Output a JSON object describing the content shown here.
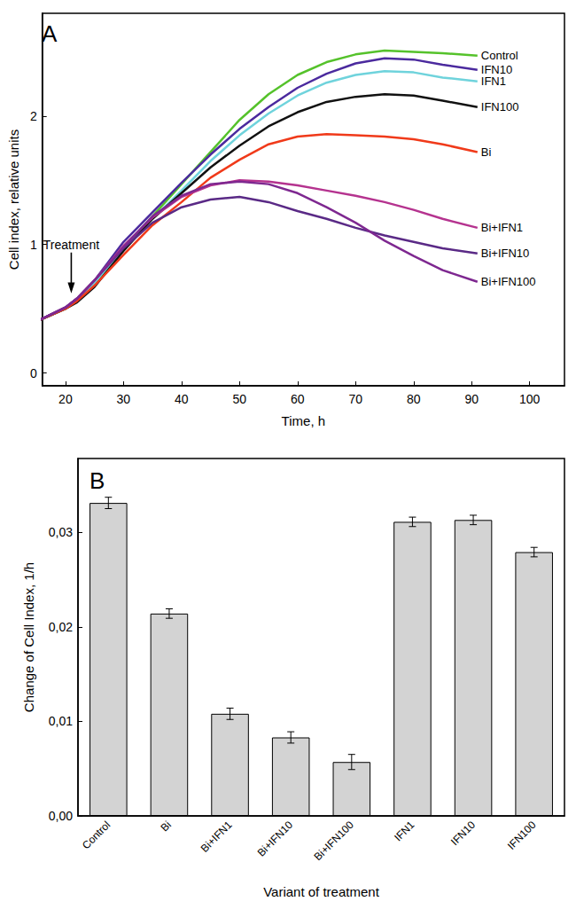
{
  "chart_data": [
    {
      "type": "line",
      "title": "A",
      "x_label": "Time, h",
      "y_label": "Cell index, relative units",
      "x": [
        15,
        20,
        22,
        25,
        30,
        35,
        40,
        45,
        50,
        55,
        60,
        65,
        70,
        75,
        80,
        85,
        91
      ],
      "series": [
        {
          "name": "Control",
          "color": "#55c22b",
          "values": [
            0.4,
            0.5,
            0.57,
            0.68,
            0.97,
            1.22,
            1.47,
            1.72,
            1.97,
            2.17,
            2.32,
            2.42,
            2.48,
            2.51,
            2.5,
            2.49,
            2.47
          ]
        },
        {
          "name": "IFN10",
          "color": "#4b2a9e",
          "values": [
            0.4,
            0.51,
            0.58,
            0.72,
            1.02,
            1.25,
            1.48,
            1.7,
            1.9,
            2.07,
            2.22,
            2.33,
            2.41,
            2.45,
            2.44,
            2.4,
            2.36
          ]
        },
        {
          "name": "IFN1",
          "color": "#6fd3dc",
          "values": [
            0.4,
            0.5,
            0.57,
            0.7,
            0.97,
            1.2,
            1.42,
            1.65,
            1.85,
            2.02,
            2.16,
            2.26,
            2.32,
            2.35,
            2.34,
            2.3,
            2.27
          ]
        },
        {
          "name": "IFN100",
          "color": "#111111",
          "values": [
            0.4,
            0.5,
            0.55,
            0.67,
            0.95,
            1.2,
            1.4,
            1.6,
            1.77,
            1.92,
            2.03,
            2.11,
            2.15,
            2.17,
            2.16,
            2.12,
            2.07
          ]
        },
        {
          "name": "Bi",
          "color": "#f03a1a",
          "values": [
            0.4,
            0.5,
            0.56,
            0.68,
            0.92,
            1.15,
            1.33,
            1.52,
            1.66,
            1.78,
            1.84,
            1.86,
            1.85,
            1.84,
            1.82,
            1.78,
            1.72
          ]
        },
        {
          "name": "Bi+IFN1",
          "color": "#b5338f",
          "values": [
            0.4,
            0.51,
            0.58,
            0.72,
            0.99,
            1.21,
            1.37,
            1.46,
            1.5,
            1.49,
            1.46,
            1.42,
            1.38,
            1.33,
            1.27,
            1.2,
            1.13
          ]
        },
        {
          "name": "Bi+IFN10",
          "color": "#5a2a86",
          "values": [
            0.4,
            0.51,
            0.58,
            0.72,
            0.97,
            1.17,
            1.29,
            1.35,
            1.37,
            1.33,
            1.26,
            1.2,
            1.13,
            1.07,
            1.02,
            0.97,
            0.93
          ]
        },
        {
          "name": "Bi+IFN100",
          "color": "#7e2890",
          "values": [
            0.4,
            0.51,
            0.58,
            0.72,
            0.98,
            1.22,
            1.38,
            1.47,
            1.49,
            1.47,
            1.4,
            1.29,
            1.17,
            1.03,
            0.91,
            0.8,
            0.71
          ]
        }
      ],
      "xlim": [
        16,
        106
      ],
      "ylim": [
        -0.1,
        2.8
      ],
      "xticks": [
        20,
        30,
        40,
        50,
        60,
        70,
        80,
        90,
        100
      ],
      "yticks": [
        0,
        1,
        2
      ],
      "annotations": [
        {
          "text": "Treatment",
          "x": 21,
          "y": 0.62
        }
      ]
    },
    {
      "type": "bar",
      "title": "B",
      "x_label": "Variant of treatment",
      "y_label": "Change of Cell Index, 1/h",
      "categories": [
        "Control",
        "Bi",
        "Bi+IFN1",
        "Bi+IFN10",
        "Bi+IFN100",
        "IFN1",
        "IFN10",
        "IFN100"
      ],
      "values": [
        0.0331,
        0.0214,
        0.0108,
        0.0083,
        0.0057,
        0.0311,
        0.0313,
        0.0279
      ],
      "errors": [
        0.0006,
        0.0005,
        0.0006,
        0.0006,
        0.0008,
        0.0005,
        0.0005,
        0.0005
      ],
      "color": "#d3d3d3",
      "ylim": [
        0,
        0.0378
      ],
      "yticks": [
        {
          "value": 0,
          "label": "0,00"
        },
        {
          "value": 0.01,
          "label": "0,01"
        },
        {
          "value": 0.02,
          "label": "0,02"
        },
        {
          "value": 0.03,
          "label": "0,03"
        }
      ]
    }
  ]
}
